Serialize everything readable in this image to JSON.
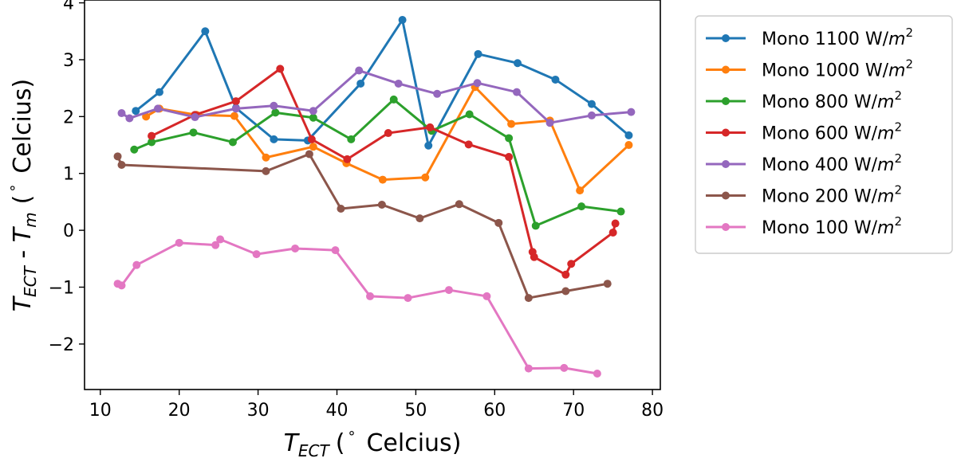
{
  "chart_data": {
    "type": "line",
    "title": "",
    "xlabel": {
      "symbol": "T",
      "subscript": "ECT",
      "degree": "°",
      "unit": "Celcius",
      "open": "(",
      "close": ")"
    },
    "ylabel": {
      "symbol": "T",
      "subscript": "ECT",
      "minus": " - ",
      "symbol2": "T",
      "subscript2": "m",
      "degree": "°",
      "unit": "Celcius",
      "open": "(",
      "close": ")"
    },
    "xlim": [
      8,
      81
    ],
    "ylim": [
      -2.8,
      4.05
    ],
    "xticks": [
      10,
      20,
      30,
      40,
      50,
      60,
      70,
      80
    ],
    "xtick_labels": [
      "10",
      "20",
      "30",
      "40",
      "50",
      "60",
      "70",
      "80"
    ],
    "yticks": [
      -2,
      -1,
      0,
      1,
      2,
      3,
      4
    ],
    "ytick_labels": [
      "−2",
      "−1",
      "0",
      "1",
      "2",
      "3",
      "4"
    ],
    "grid": false,
    "legend_position": "right-outside",
    "legend_unit": "W/",
    "legend_unit_var": "m",
    "legend_unit_exp": "2",
    "series": [
      {
        "name": "Mono 1100",
        "color": "#1f77b4",
        "x": [
          14.5,
          17.5,
          23.3,
          27.2,
          32,
          36.3,
          43,
          48.3,
          51.6,
          57.9,
          62.9,
          67.7,
          72.3,
          77
        ],
        "y": [
          2.1,
          2.43,
          3.5,
          2.15,
          1.6,
          1.58,
          2.58,
          3.7,
          1.49,
          3.1,
          2.94,
          2.65,
          2.22,
          1.67
        ]
      },
      {
        "name": "Mono 1000",
        "color": "#ff7f0e",
        "x": [
          15.8,
          17.5,
          22.2,
          27,
          31,
          37,
          41.2,
          45.8,
          51.2,
          57.5,
          62.1,
          67,
          70.8,
          77
        ],
        "y": [
          2.0,
          2.14,
          2.03,
          2.01,
          1.28,
          1.47,
          1.18,
          0.89,
          0.93,
          2.52,
          1.87,
          1.93,
          0.7,
          1.5
        ]
      },
      {
        "name": "Mono 800",
        "color": "#2ca02c",
        "x": [
          14.3,
          16.5,
          21.8,
          26.8,
          32.2,
          37,
          41.8,
          47.2,
          52,
          56.8,
          61.8,
          65.2,
          71,
          76
        ],
        "y": [
          1.42,
          1.55,
          1.72,
          1.55,
          2.07,
          1.98,
          1.6,
          2.3,
          1.75,
          2.04,
          1.62,
          0.08,
          0.42,
          0.33
        ]
      },
      {
        "name": "Mono 600",
        "color": "#d62728",
        "x": [
          16.5,
          22,
          27.2,
          32.8,
          36.8,
          41.3,
          46.5,
          51.8,
          56.7,
          61.8,
          64.8,
          65,
          69,
          69.7,
          75,
          75.3
        ],
        "y": [
          1.66,
          2.03,
          2.27,
          2.84,
          1.6,
          1.25,
          1.71,
          1.81,
          1.51,
          1.29,
          -0.38,
          -0.47,
          -0.78,
          -0.59,
          -0.04,
          0.12
        ]
      },
      {
        "name": "Mono 400",
        "color": "#9467bd",
        "x": [
          12.7,
          13.7,
          17.3,
          22,
          27.2,
          32,
          37,
          42.8,
          47.8,
          52.7,
          57.8,
          62.8,
          67,
          72.3,
          77.3
        ],
        "y": [
          2.06,
          1.97,
          2.14,
          1.99,
          2.14,
          2.19,
          2.1,
          2.81,
          2.58,
          2.4,
          2.59,
          2.43,
          1.89,
          2.02,
          2.08
        ]
      },
      {
        "name": "Mono 200",
        "color": "#8c564b",
        "x": [
          12.2,
          12.7,
          31,
          36.5,
          40.5,
          45.7,
          50.5,
          55.5,
          60.5,
          64.3,
          69,
          74.3
        ],
        "y": [
          1.3,
          1.15,
          1.04,
          1.34,
          0.38,
          0.45,
          0.21,
          0.46,
          0.13,
          -1.19,
          -1.07,
          -0.94
        ]
      },
      {
        "name": "Mono 100",
        "color": "#e377c2",
        "x": [
          12.2,
          12.7,
          14.6,
          20,
          24.6,
          25.2,
          29.8,
          34.7,
          39.8,
          44.2,
          49,
          54.2,
          59,
          64.3,
          68.8,
          73
        ],
        "y": [
          -0.94,
          -0.97,
          -0.61,
          -0.22,
          -0.26,
          -0.16,
          -0.42,
          -0.32,
          -0.35,
          -1.16,
          -1.19,
          -1.05,
          -1.16,
          -2.43,
          -2.42,
          -2.52
        ]
      }
    ]
  }
}
